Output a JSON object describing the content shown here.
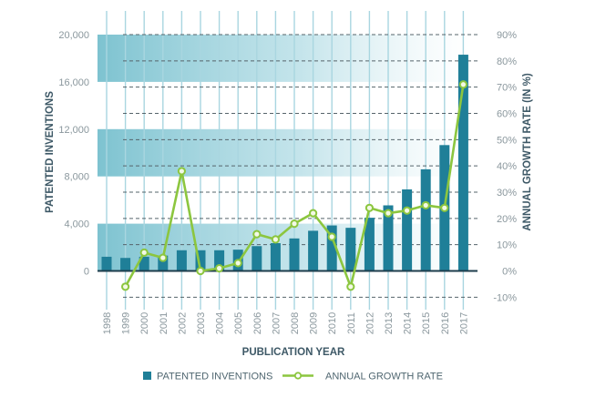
{
  "chart_data": {
    "type": "bar",
    "title": "",
    "categories": [
      "1998",
      "1999",
      "2000",
      "2001",
      "2002",
      "2003",
      "2004",
      "2005",
      "2006",
      "2007",
      "2008",
      "2009",
      "2010",
      "2011",
      "2012",
      "2013",
      "2014",
      "2015",
      "2016",
      "2017"
    ],
    "series": [
      {
        "name": "PATENTED INVENTIONS",
        "type": "bar",
        "axis": "left",
        "color": "#1f7f98",
        "values": [
          1200,
          1100,
          1200,
          1300,
          1750,
          1750,
          1750,
          1800,
          2100,
          2350,
          2750,
          3400,
          3850,
          3650,
          4500,
          5550,
          6900,
          8600,
          10650,
          18300
        ]
      },
      {
        "name": "ANNUAL GROWTH RATE",
        "type": "line",
        "axis": "right",
        "color": "#8cc63f",
        "values": [
          null,
          -6,
          7,
          5,
          38,
          0,
          1,
          3,
          14,
          12,
          18,
          22,
          13,
          -6,
          24,
          22,
          23,
          25,
          24,
          71
        ]
      }
    ],
    "xlabel": "PUBLICATION YEAR",
    "ylabel": "PATENTED INVENTIONS",
    "y2label": "ANNUAL GROWTH RATE (IN %)",
    "ylim": [
      0,
      20000
    ],
    "y2lim": [
      -10,
      90
    ],
    "yticks": [
      0,
      4000,
      8000,
      12000,
      16000,
      20000
    ],
    "ytick_labels": [
      "0",
      "4,000",
      "8,000",
      "12,000",
      "16,000",
      "20,000"
    ],
    "y2ticks": [
      -10,
      0,
      10,
      20,
      30,
      40,
      50,
      60,
      70,
      80,
      90
    ],
    "y2tick_labels": [
      "-10%",
      "0%",
      "10%",
      "20%",
      "30%",
      "40%",
      "50%",
      "60%",
      "70%",
      "80%",
      "90%"
    ],
    "shaded_bands": [
      [
        0,
        4000
      ],
      [
        8000,
        12000
      ],
      [
        16000,
        20000
      ]
    ],
    "band_color": "#6fbccb",
    "grid": true,
    "legend": {
      "position": "bottom",
      "items": [
        "PATENTED INVENTIONS",
        "ANNUAL GROWTH RATE"
      ]
    }
  }
}
